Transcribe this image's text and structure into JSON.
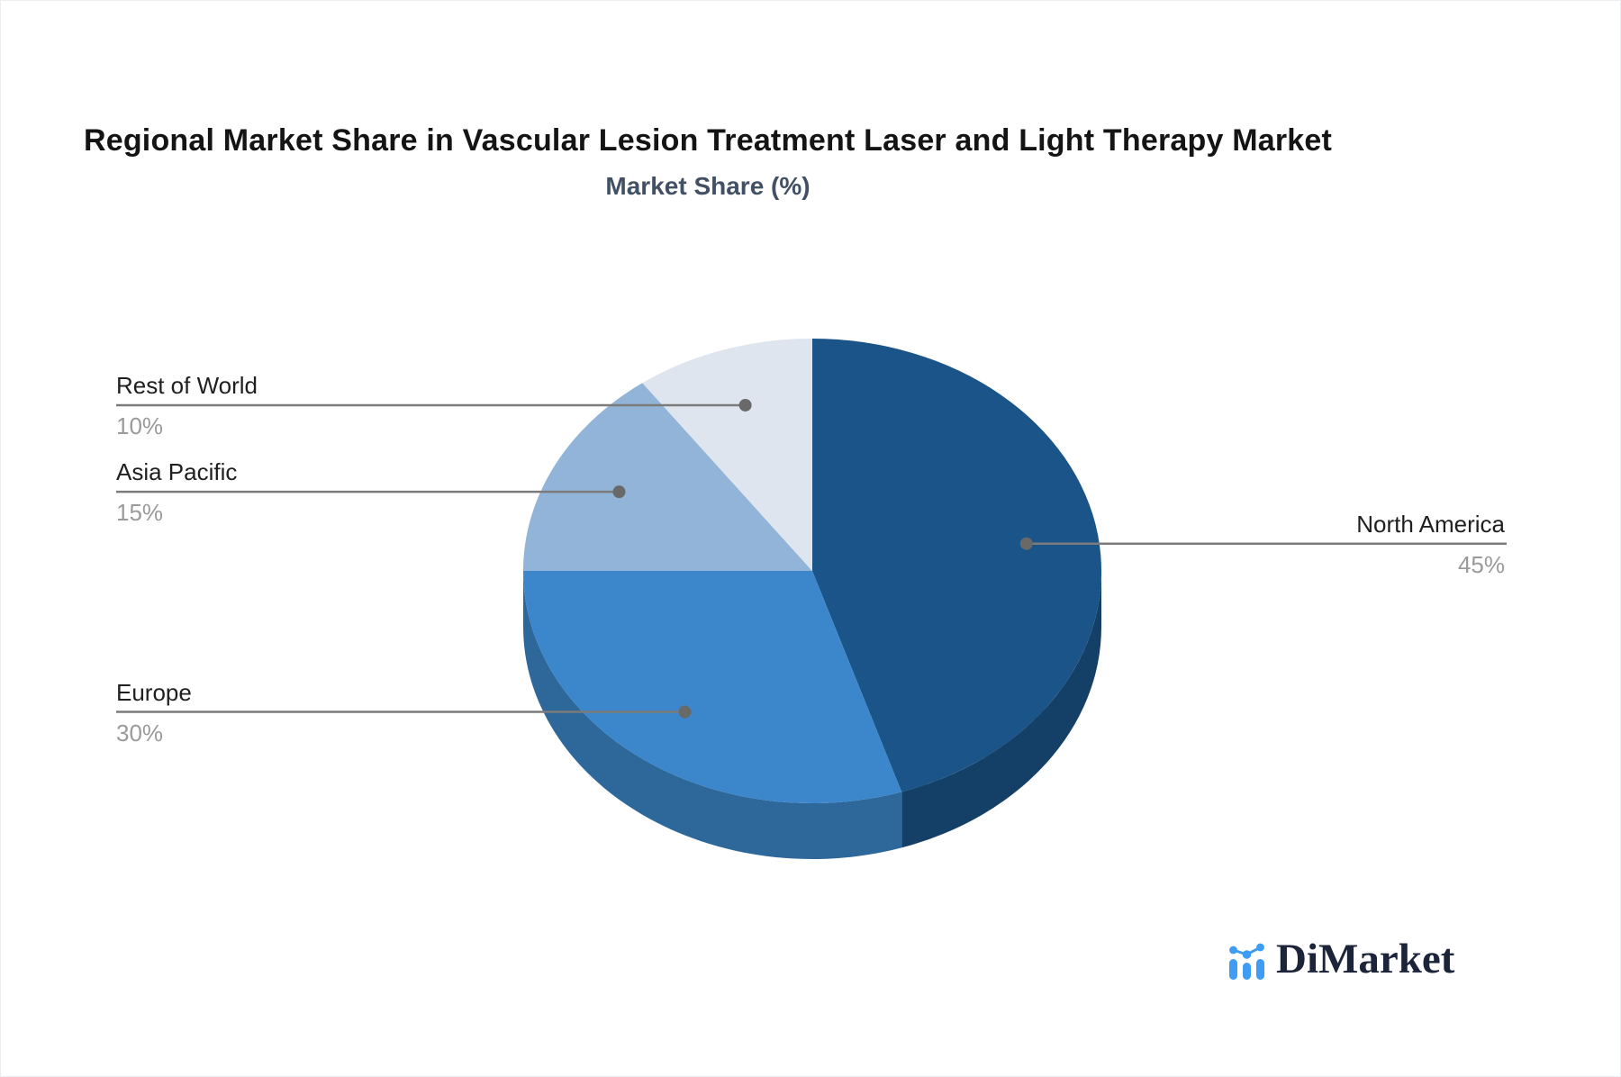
{
  "header": {
    "title": "Regional Market Share in Vascular Lesion Treatment Laser and Light Therapy Market",
    "subtitle": "Market Share (%)"
  },
  "chart_data": {
    "type": "pie",
    "title": "Regional Market Share in Vascular Lesion Treatment Laser and Light Therapy Market",
    "subtitle": "Market Share (%)",
    "unit": "%",
    "style": "3d",
    "start_angle_deg": 0,
    "direction": "clockwise",
    "categories": [
      "North America",
      "Europe",
      "Asia Pacific",
      "Rest of World"
    ],
    "values": [
      45,
      30,
      15,
      10
    ],
    "slices": [
      {
        "label": "North America",
        "value": 45,
        "display": "45%",
        "color": "#1A5488",
        "label_side": "right"
      },
      {
        "label": "Europe",
        "value": 30,
        "display": "30%",
        "color": "#3C87CB",
        "label_side": "left"
      },
      {
        "label": "Asia Pacific",
        "value": 15,
        "display": "15%",
        "color": "#92B4D8",
        "label_side": "left"
      },
      {
        "label": "Rest of World",
        "value": 10,
        "display": "10%",
        "color": "#DEE5EF",
        "label_side": "left"
      }
    ],
    "leader_line_color": "#7b7b7b",
    "leader_dot_color": "#696969",
    "label_color": "#1f1f1f",
    "value_color": "#9a9a9a",
    "legend": "none",
    "grid": false
  },
  "branding": {
    "logo_text": "DiMarket",
    "logo_icon": "bar-line-chart-icon",
    "logo_icon_color": "#3E9CF4",
    "logo_text_color": "#1B2438"
  }
}
